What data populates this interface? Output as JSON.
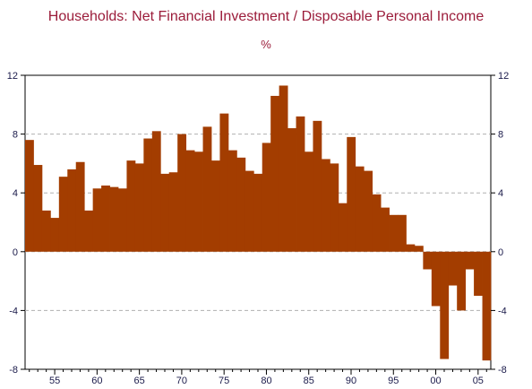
{
  "chart_data": {
    "type": "bar",
    "title": "Households: Net Financial Investment / Disposable Personal Income",
    "subtitle": "%",
    "xlabel": "",
    "ylabel": "",
    "x_ticks": [
      "55",
      "60",
      "65",
      "70",
      "75",
      "80",
      "85",
      "90",
      "95",
      "00",
      "05"
    ],
    "x_tick_years": [
      1955,
      1960,
      1965,
      1970,
      1975,
      1980,
      1985,
      1990,
      1995,
      2000,
      2005
    ],
    "y_ticks": [
      "12",
      "8",
      "4",
      "0",
      "-4",
      "-8"
    ],
    "y_tick_values": [
      12,
      8,
      4,
      0,
      -4,
      -8
    ],
    "ylim": [
      -8,
      12
    ],
    "xlim": [
      1951.5,
      2006.5
    ],
    "grid": true,
    "bar_color": "#a33d00",
    "x": [
      1952,
      1953,
      1954,
      1955,
      1956,
      1957,
      1958,
      1959,
      1960,
      1961,
      1962,
      1963,
      1964,
      1965,
      1966,
      1967,
      1968,
      1969,
      1970,
      1971,
      1972,
      1973,
      1974,
      1975,
      1976,
      1977,
      1978,
      1979,
      1980,
      1981,
      1982,
      1983,
      1984,
      1985,
      1986,
      1987,
      1988,
      1989,
      1990,
      1991,
      1992,
      1993,
      1994,
      1995,
      1996,
      1997,
      1998,
      1999,
      2000,
      2001,
      2002,
      2003,
      2004,
      2005,
      2006
    ],
    "values": [
      7.6,
      5.9,
      2.8,
      2.3,
      5.1,
      5.6,
      6.1,
      2.8,
      4.3,
      4.5,
      4.4,
      4.3,
      6.2,
      6.0,
      7.7,
      8.2,
      5.3,
      5.4,
      8.0,
      6.9,
      6.8,
      8.5,
      6.2,
      9.4,
      6.9,
      6.4,
      5.5,
      5.3,
      7.4,
      10.6,
      11.3,
      8.4,
      9.2,
      6.8,
      8.9,
      6.3,
      6.0,
      3.3,
      7.8,
      5.8,
      5.5,
      3.9,
      3.0,
      2.5,
      2.5,
      0.5,
      0.4,
      -1.2,
      -3.7,
      -7.3,
      -2.3,
      -4.0,
      -1.2,
      -3.0,
      -7.4
    ]
  }
}
